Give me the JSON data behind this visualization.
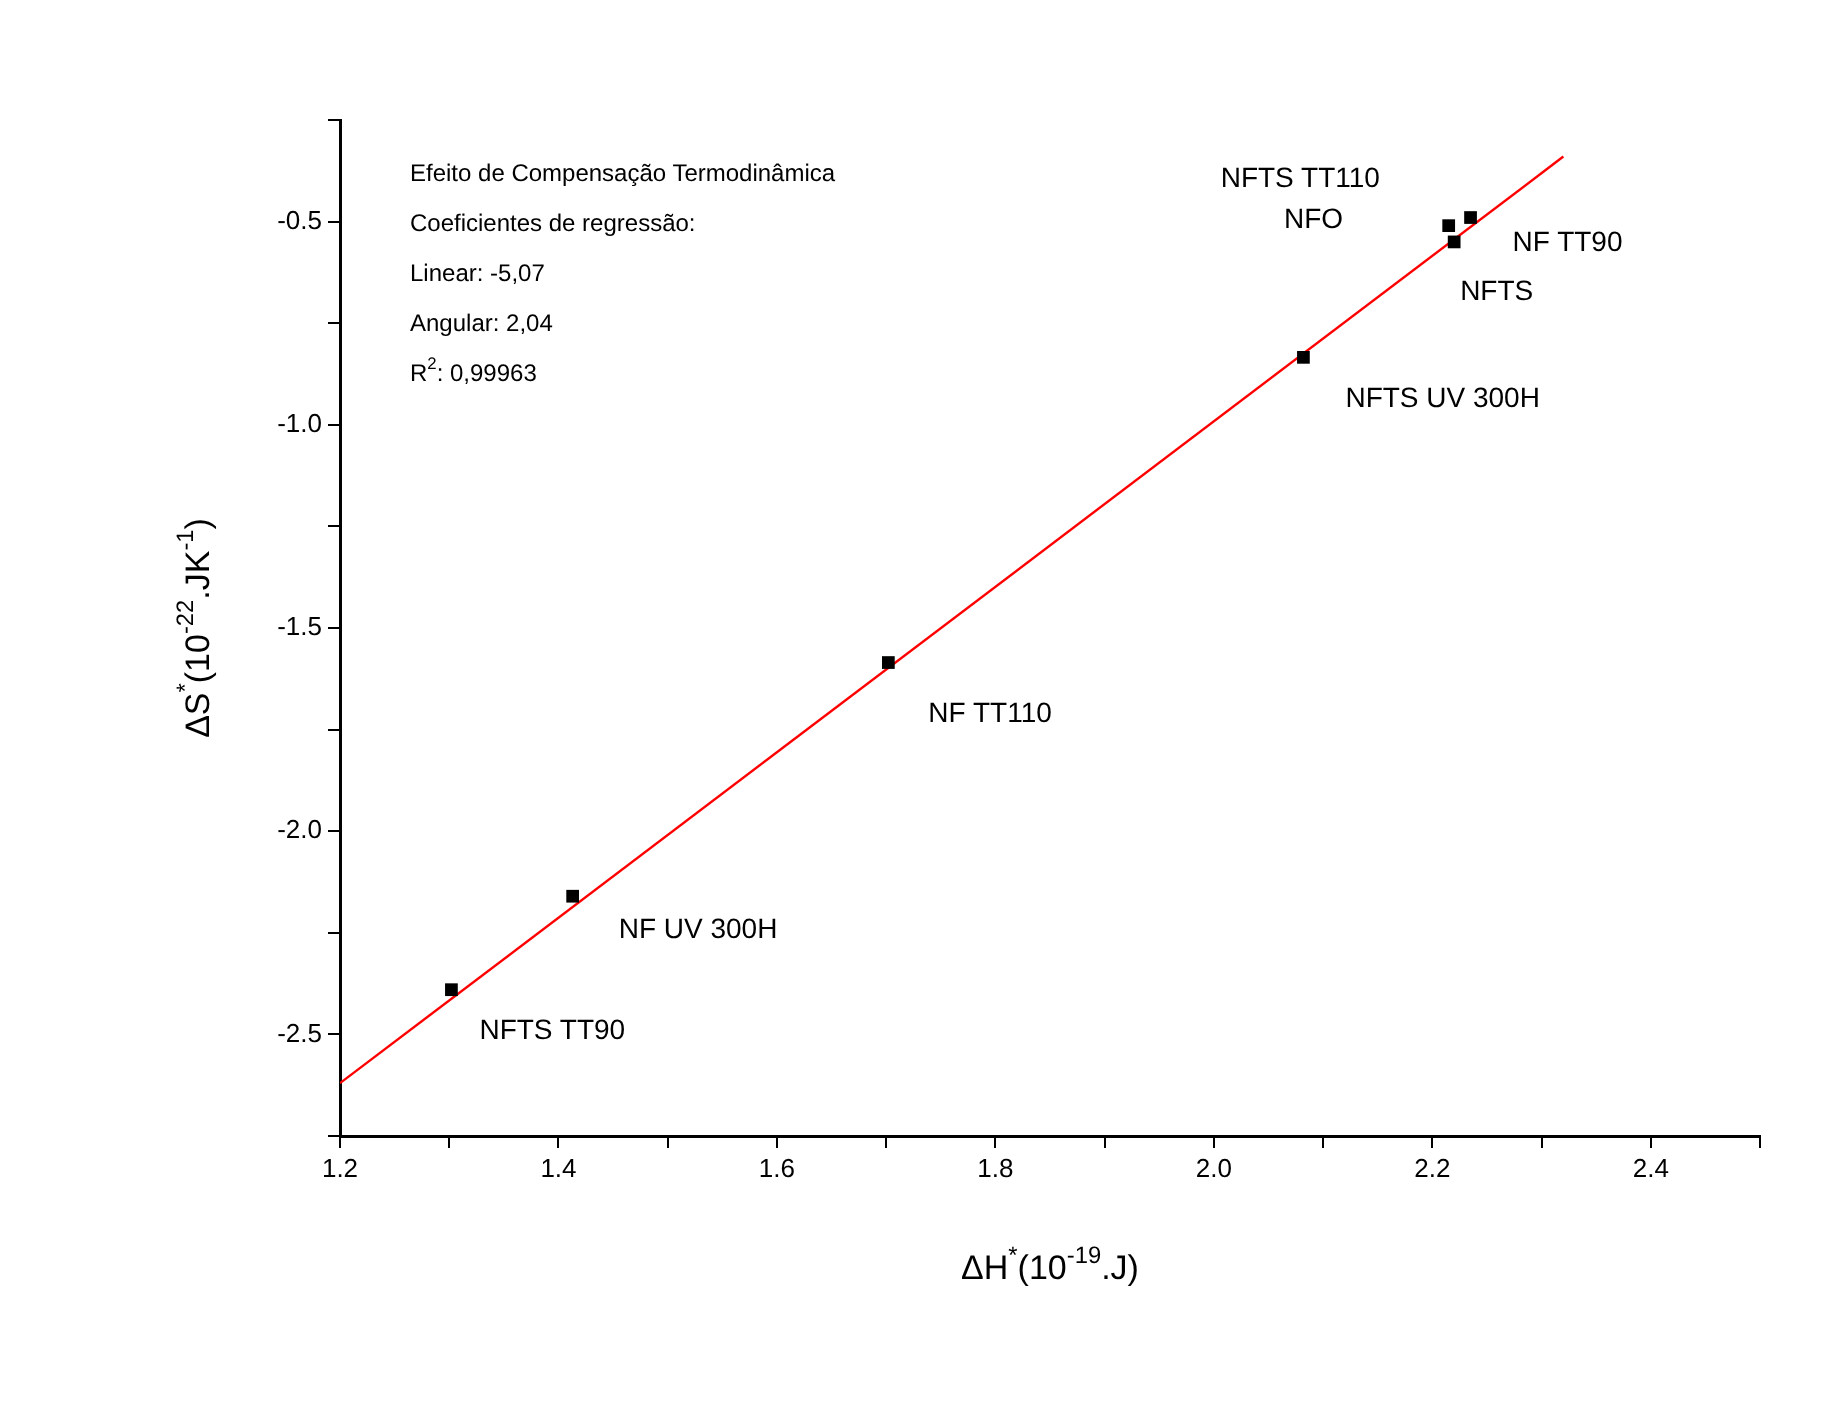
{
  "chart_data": {
    "type": "scatter",
    "xlabel": "ΔH$^{*}$(10$^{-19}$.J)",
    "ylabel": "ΔS$^{*}$(10$^{-22}$.JK$^{-1}$)",
    "xlim": [
      1.2,
      2.5
    ],
    "ylim": [
      -2.75,
      -0.25
    ],
    "xticks": [
      1.2,
      {
        "value": 1.3,
        "label": null
      },
      1.4,
      {
        "value": 1.5,
        "label": null
      },
      1.6,
      {
        "value": 1.7,
        "label": null
      },
      1.8,
      {
        "value": 1.9,
        "label": null
      },
      {
        "value": 2,
        "label": "2.0"
      },
      {
        "value": 2.1,
        "label": null
      },
      2.2,
      {
        "value": 2.3,
        "label": null
      },
      2.4,
      {
        "value": 2.5,
        "label": null
      }
    ],
    "yticks": [
      {
        "value": -2.75,
        "label": null
      },
      -2.5,
      {
        "value": -2.25,
        "label": null
      },
      {
        "value": -2,
        "label": "-2.0"
      },
      {
        "value": -1.75,
        "label": null
      },
      -1.5,
      {
        "value": -1.25,
        "label": null
      },
      {
        "value": -1,
        "label": "-1.0"
      },
      {
        "value": -0.75,
        "label": null
      },
      -0.5,
      {
        "value": -0.25,
        "label": null
      }
    ],
    "grid": false,
    "legend": false,
    "marker": "square",
    "series": [
      {
        "color": "#000000",
        "x": [
          1.302,
          1.413,
          1.702,
          2.082,
          2.215,
          2.235,
          2.22
        ],
        "values": [
          -2.39,
          -2.16,
          -1.585,
          -0.834,
          -0.51,
          -0.49,
          -0.55
        ]
      },
      {
        "type": "line",
        "marker": "none",
        "color": "#ff0000",
        "x": [
          1.2,
          2.32
        ],
        "values": [
          -2.62,
          -0.34
        ]
      }
    ],
    "annotations": [
      "Efeito de Compensação Termodinâmica",
      "Coeficientes de regressão:",
      "Linear: -5,07",
      "Angular: 2,04",
      "R$^{2}$: 0,99963",
      {
        "text": "NFTS TT90",
        "x": 1.302,
        "y": -2.39
      },
      {
        "text": "NF UV 300H",
        "x": 1.413,
        "y": -2.16
      },
      {
        "text": "NF TT110",
        "x": 1.702,
        "y": -1.585
      },
      {
        "text": "NFTS UV 300H",
        "x": 2.082,
        "y": -0.834
      },
      {
        "text": "NFTS TT110",
        "x": 2.215,
        "y": -0.51
      },
      "NFO",
      {
        "text": "NF TT90",
        "x": 2.235,
        "y": -0.49
      },
      {
        "text": "NFTS",
        "x": 2.22,
        "y": -0.55
      }
    ]
  }
}
